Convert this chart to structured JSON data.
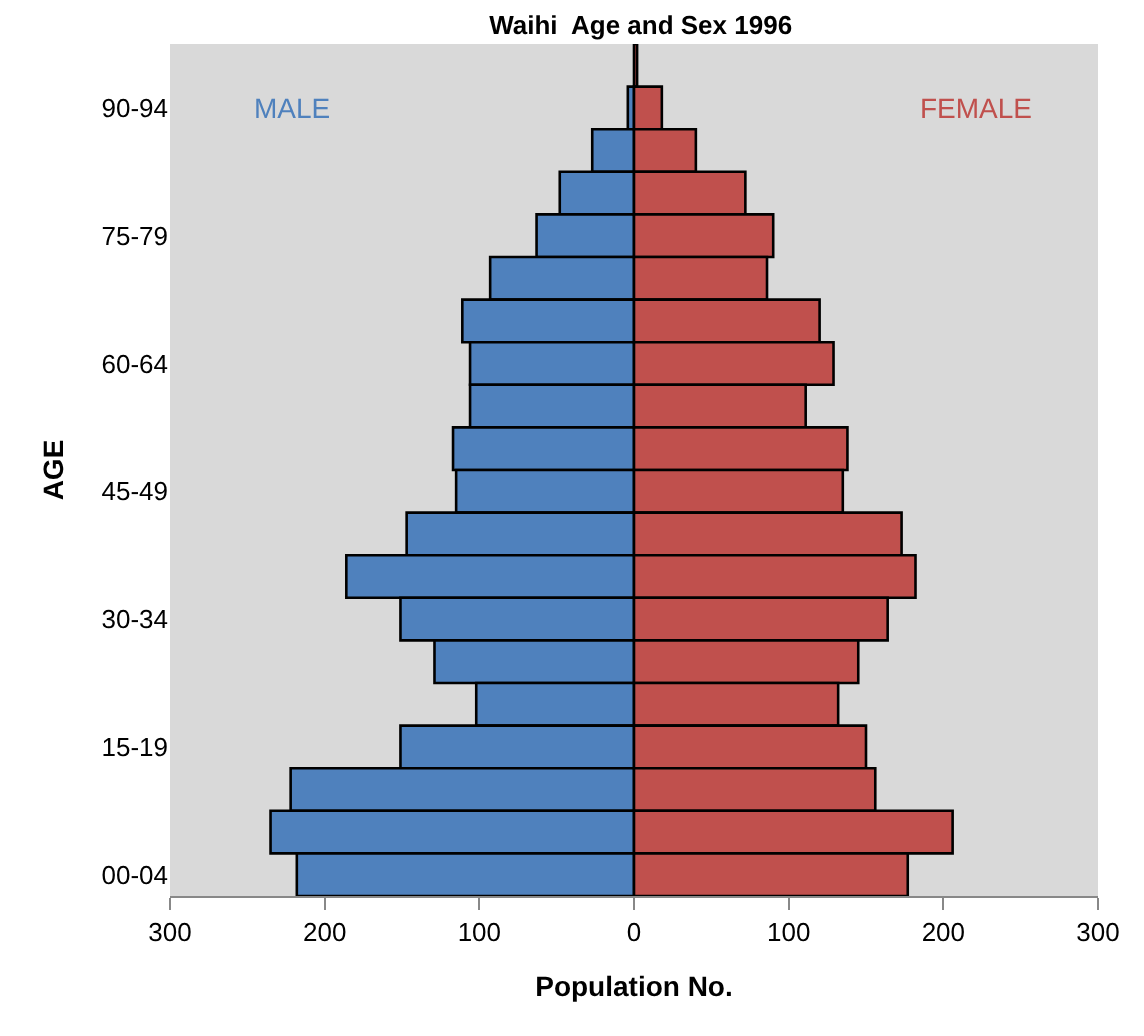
{
  "chart_data": {
    "type": "bar",
    "orientation": "horizontal",
    "stacked": true,
    "title": "Waihi  Age and Sex 1996",
    "xlabel": "Population No.",
    "ylabel": "AGE",
    "categories": [
      null,
      "90-94",
      null,
      null,
      "75-79",
      null,
      null,
      "60-64",
      null,
      null,
      "45-49",
      null,
      null,
      "30-34",
      null,
      null,
      "15-19",
      null,
      null,
      "00-04"
    ],
    "series": [
      {
        "name": "MALE",
        "color": "#4f81bd",
        "values": [
          null,
          -4,
          -27,
          -48,
          -63,
          -93,
          -111,
          -106,
          -106,
          -117,
          -115,
          -147,
          -186,
          -151,
          -129,
          -102,
          -151,
          -222,
          -235,
          -218
        ]
      },
      {
        "name": "FEMALE",
        "color": "#c0504d",
        "values": [
          2,
          18,
          40,
          72,
          90,
          86,
          120,
          129,
          111,
          138,
          135,
          173,
          182,
          164,
          145,
          132,
          150,
          156,
          206,
          177
        ]
      }
    ],
    "xlim": [
      -300,
      300
    ],
    "xticks": [
      {
        "value": -300,
        "label": "300"
      },
      {
        "value": -200,
        "label": "200"
      },
      {
        "value": -100,
        "label": "100"
      },
      0,
      100,
      200,
      300
    ],
    "grid": false,
    "legend": false
  }
}
